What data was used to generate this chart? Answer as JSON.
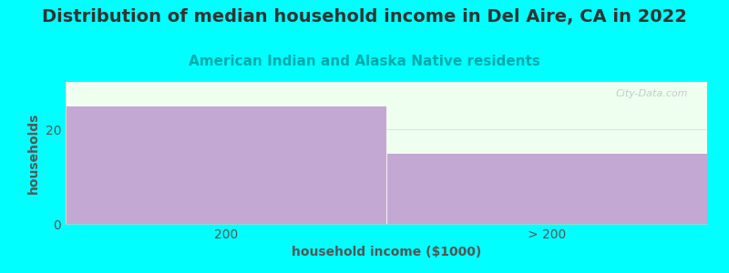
{
  "title": "Distribution of median household income in Del Aire, CA in 2022",
  "subtitle": "American Indian and Alaska Native residents",
  "xlabel": "household income ($1000)",
  "ylabel": "households",
  "background_color": "#00FFFF",
  "plot_bg_color": "#EEFFF0",
  "bar_color": "#C4A8D4",
  "bar_edge_color": "#FFFFFF",
  "categories": [
    "200",
    "> 200"
  ],
  "values": [
    25,
    15
  ],
  "ylim": [
    0,
    30
  ],
  "yticks": [
    0,
    20
  ],
  "title_fontsize": 14,
  "subtitle_fontsize": 11,
  "label_fontsize": 10,
  "tick_fontsize": 10,
  "watermark": "City-Data.com",
  "title_color": "#333333",
  "subtitle_color": "#00AAAA",
  "label_color": "#555555",
  "tick_color": "#555555"
}
